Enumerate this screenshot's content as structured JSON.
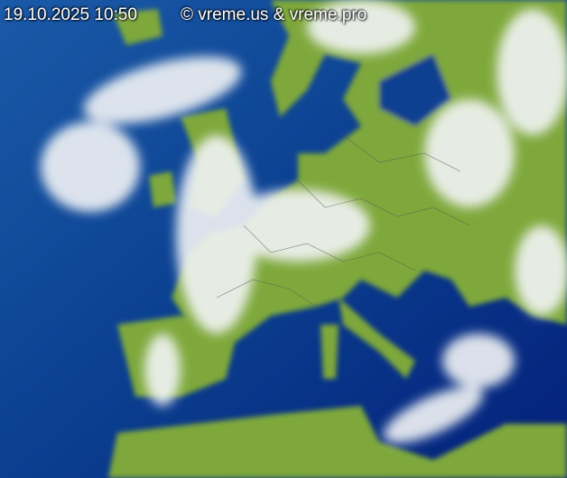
{
  "map": {
    "timestamp": "19.10.2025 10:50",
    "copyright": "© vreme.us & vreme.pro",
    "layer": "satellite-composite",
    "colors": {
      "sea": "#0a3a8a",
      "deep_sea": "#001a6e",
      "land": "#7ea83a",
      "cloud": "#f2f4f6"
    }
  }
}
